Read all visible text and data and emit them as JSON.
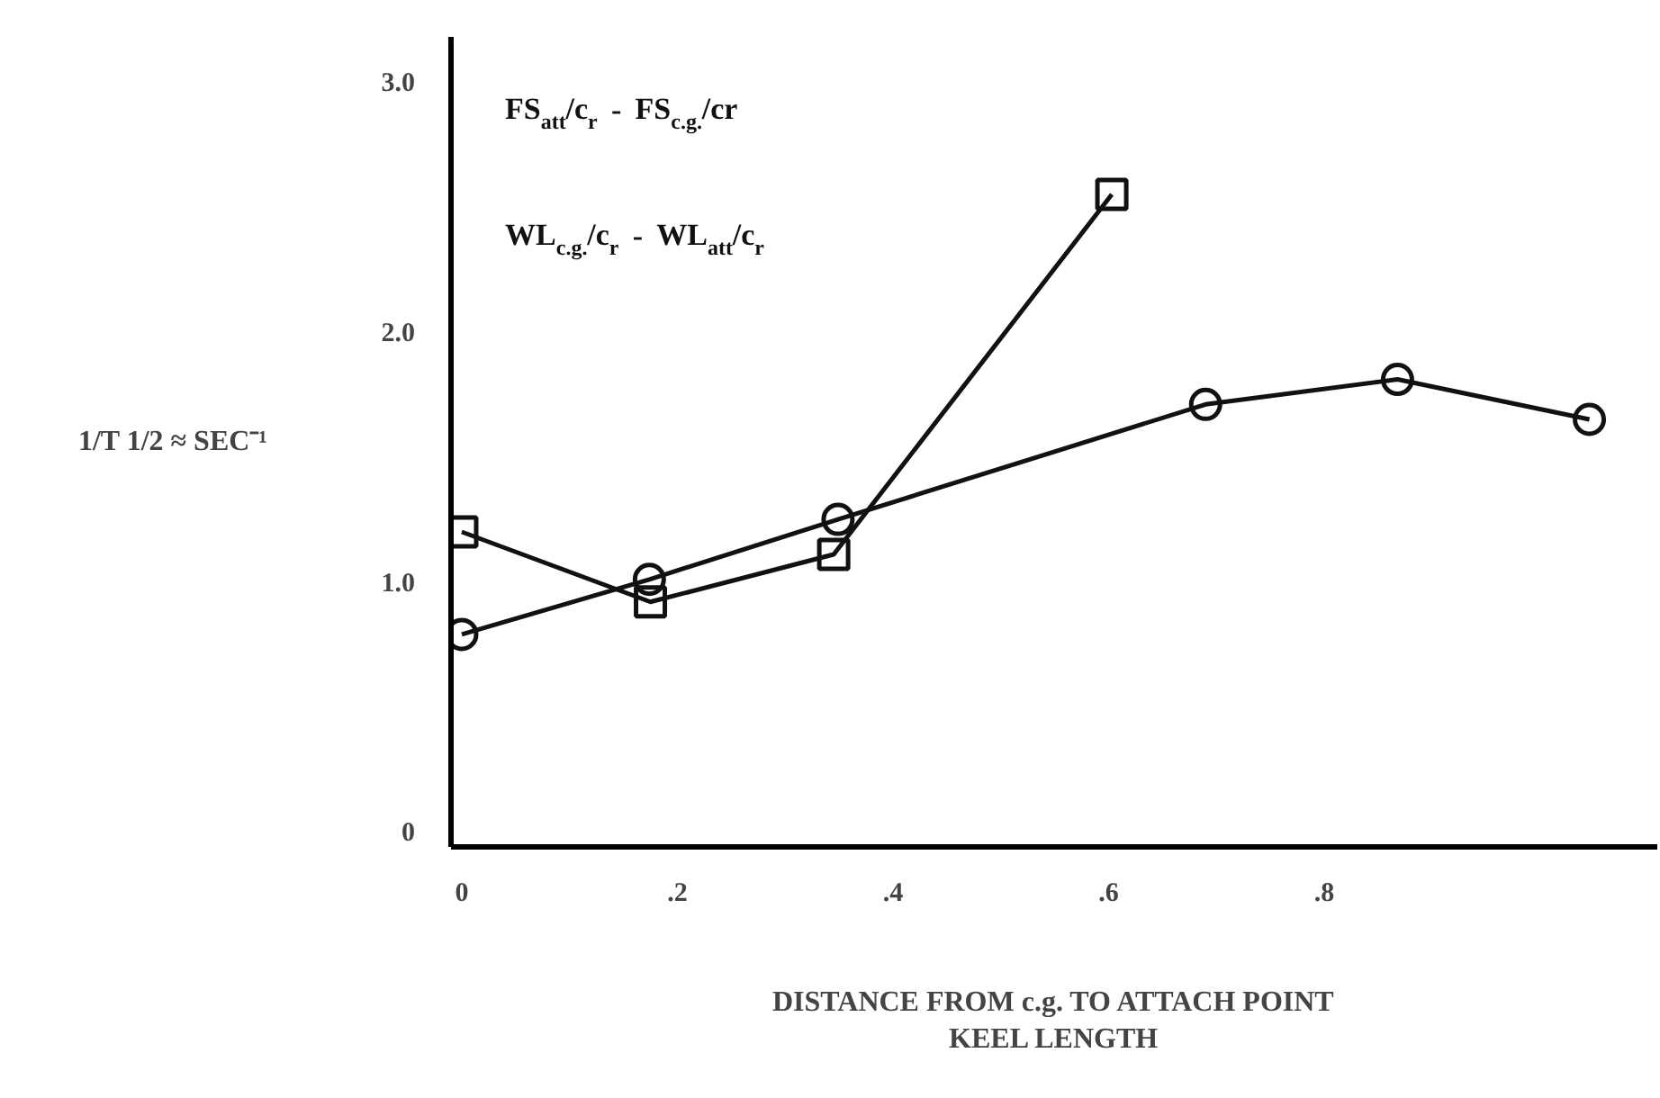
{
  "chart_data": {
    "type": "line",
    "xlabel": "DISTANCE FROM c.g. TO ATTACH POINT\nKEEL LENGTH",
    "ylabel": "1/T 1/2 ≈ SEC⁻¹",
    "annotations": [
      "FS$_{att}$/c$_{r}$ - FS$_{c.g.}$/cr",
      "WL$_{c.g.}$/c$_{r}$ - WL$_{att}$/c$_{r}$"
    ],
    "series": [
      {
        "color": "#111111",
        "marker": "circle",
        "x": [
          0,
          0.174,
          0.349,
          0.69,
          0.868,
          1.046
        ],
        "values": [
          0.79,
          1.01,
          1.25,
          1.71,
          1.81,
          1.65
        ]
      },
      {
        "color": "#111111",
        "marker": "square",
        "x": [
          0,
          0.175,
          0.345,
          0.603
        ],
        "values": [
          1.2,
          0.92,
          1.11,
          2.55
        ]
      }
    ],
    "xlim": [
      -0.01,
      1.109
    ],
    "ylim": [
      -0.06,
      3.18
    ],
    "xticks": [
      0,
      {
        "value": 0.2,
        "label": ".2"
      },
      {
        "value": 0.4,
        "label": ".4"
      },
      {
        "value": 0.6,
        "label": ".6"
      },
      {
        "value": 0.8,
        "label": ".8"
      }
    ],
    "yticks": [
      0,
      {
        "value": 1,
        "label": "1.0"
      },
      {
        "value": 2,
        "label": "2.0"
      },
      {
        "value": 3,
        "label": "3.0"
      }
    ],
    "grid": false
  }
}
